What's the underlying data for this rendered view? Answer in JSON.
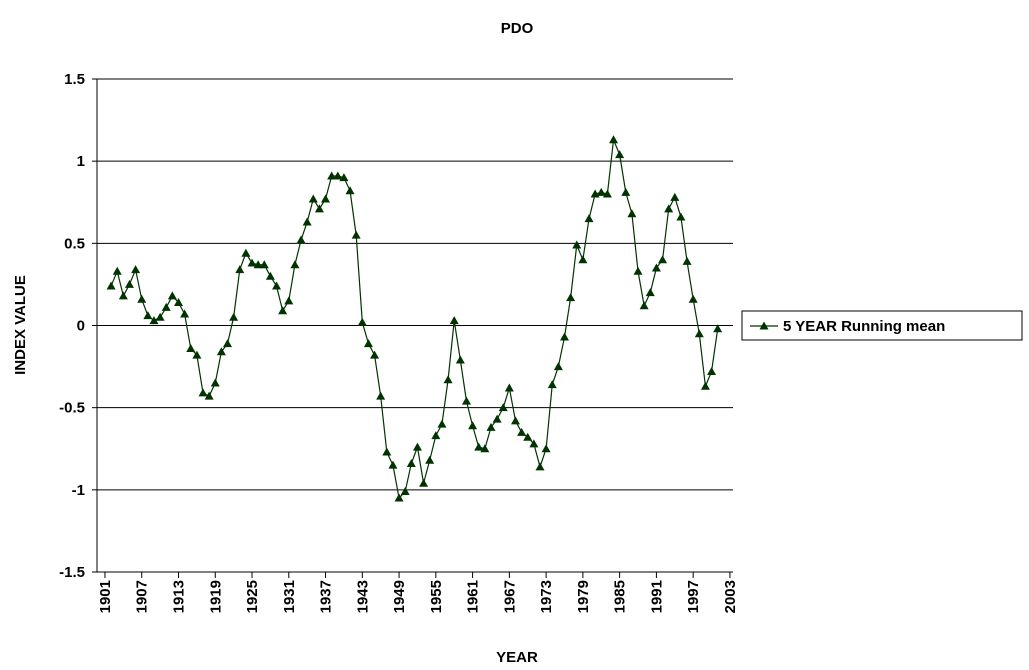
{
  "chart_data": {
    "type": "line",
    "title": "PDO",
    "x_label": "YEAR",
    "y_label": "INDEX VALUE",
    "x": [
      1902,
      1903,
      1904,
      1905,
      1906,
      1907,
      1908,
      1909,
      1910,
      1911,
      1912,
      1913,
      1914,
      1915,
      1916,
      1917,
      1918,
      1919,
      1920,
      1921,
      1922,
      1923,
      1924,
      1925,
      1926,
      1927,
      1928,
      1929,
      1930,
      1931,
      1932,
      1933,
      1934,
      1935,
      1936,
      1937,
      1938,
      1939,
      1940,
      1941,
      1942,
      1943,
      1944,
      1945,
      1946,
      1947,
      1948,
      1949,
      1950,
      1951,
      1952,
      1953,
      1954,
      1955,
      1956,
      1957,
      1958,
      1959,
      1960,
      1961,
      1962,
      1963,
      1964,
      1965,
      1966,
      1967,
      1968,
      1969,
      1970,
      1971,
      1972,
      1973,
      1974,
      1975,
      1976,
      1977,
      1978,
      1979,
      1980,
      1981,
      1982,
      1983,
      1984,
      1985,
      1986,
      1987,
      1988,
      1989,
      1990,
      1991,
      1992,
      1993,
      1994,
      1995,
      1996,
      1997,
      1998,
      1999,
      2000,
      2001
    ],
    "series": [
      {
        "name": "5 YEAR Running mean",
        "color": "#003300",
        "values": [
          0.24,
          0.33,
          0.18,
          0.25,
          0.34,
          0.16,
          0.06,
          0.03,
          0.05,
          0.11,
          0.18,
          0.14,
          0.07,
          -0.14,
          -0.18,
          -0.41,
          -0.43,
          -0.35,
          -0.16,
          -0.11,
          0.05,
          0.34,
          0.44,
          0.38,
          0.37,
          0.37,
          0.3,
          0.24,
          0.09,
          0.15,
          0.37,
          0.52,
          0.63,
          0.77,
          0.71,
          0.77,
          0.91,
          0.91,
          0.9,
          0.82,
          0.55,
          0.02,
          -0.11,
          -0.18,
          -0.43,
          -0.77,
          -0.85,
          -1.05,
          -1.01,
          -0.84,
          -0.74,
          -0.96,
          -0.82,
          -0.67,
          -0.6,
          -0.33,
          0.03,
          -0.21,
          -0.46,
          -0.61,
          -0.74,
          -0.75,
          -0.62,
          -0.57,
          -0.5,
          -0.38,
          -0.58,
          -0.65,
          -0.68,
          -0.72,
          -0.86,
          -0.75,
          -0.36,
          -0.25,
          -0.07,
          0.17,
          0.49,
          0.4,
          0.65,
          0.8,
          0.81,
          0.8,
          1.13,
          1.04,
          0.81,
          0.68,
          0.33,
          0.12,
          0.2,
          0.35,
          0.4,
          0.71,
          0.78,
          0.66,
          0.39,
          0.16,
          -0.05,
          -0.37,
          -0.28,
          -0.02
        ]
      }
    ],
    "xlim": [
      1899.7,
      2003.5
    ],
    "xticks": [
      1901,
      1907,
      1913,
      1919,
      1925,
      1931,
      1937,
      1943,
      1949,
      1955,
      1961,
      1967,
      1973,
      1979,
      1985,
      1991,
      1997,
      2003
    ],
    "ylim": [
      -1.5,
      1.5
    ],
    "yticks": [
      -1.5,
      -1,
      -0.5,
      0,
      0.5,
      1,
      1.5
    ],
    "grid": true,
    "legend": "right"
  }
}
